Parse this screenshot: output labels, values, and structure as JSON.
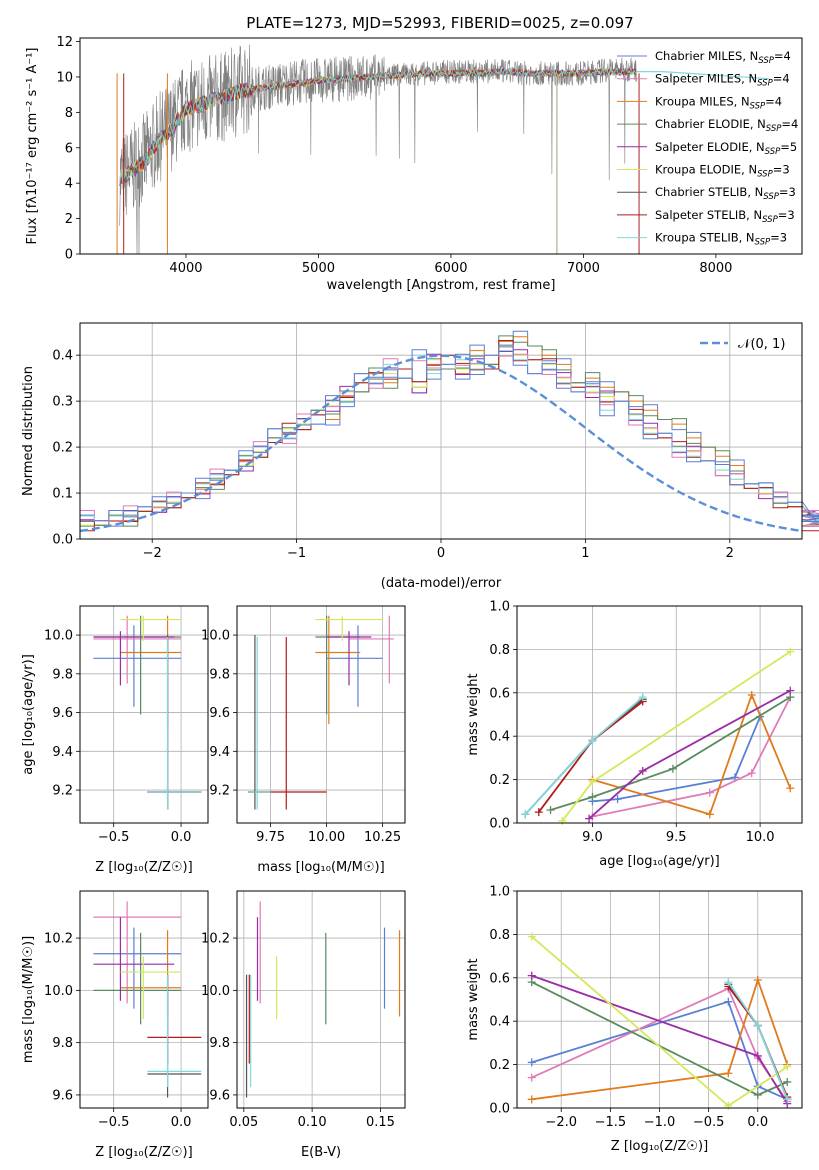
{
  "figure_title": "PLATE=1273, MJD=52993, FIBERID=0025, z=0.097",
  "models": [
    {
      "name": "Chabrier MILES",
      "nssp": "4",
      "color": "#5b7fd6"
    },
    {
      "name": "Salpeter MILES",
      "nssp": "4",
      "color": "#e07ab8"
    },
    {
      "name": "Kroupa MILES",
      "nssp": "4",
      "color": "#e07b1c"
    },
    {
      "name": "Chabrier ELODIE",
      "nssp": "4",
      "color": "#5a8a5f"
    },
    {
      "name": "Salpeter ELODIE",
      "nssp": "5",
      "color": "#9a2ca6"
    },
    {
      "name": "Kroupa ELODIE",
      "nssp": "3",
      "color": "#d4e85a"
    },
    {
      "name": "Chabrier STELIB",
      "nssp": "3",
      "color": "#555555"
    },
    {
      "name": "Salpeter STELIB",
      "nssp": "3",
      "color": "#b01c1c"
    },
    {
      "name": "Kroupa STELIB",
      "nssp": "3",
      "color": "#7fd8dc"
    }
  ],
  "chart_data": [
    {
      "id": "spectrum",
      "type": "line",
      "title": "PLATE=1273, MJD=52993, FIBERID=0025, z=0.097",
      "xlabel": "wavelength [Angstrom, rest frame]",
      "ylabel": "Flux [fλ10⁻¹⁷ erg cm⁻² s⁻¹ A⁻¹]",
      "xlim": [
        3200,
        8650
      ],
      "ylim": [
        0,
        12.2
      ],
      "xticks": [
        4000,
        5000,
        6000,
        7000,
        8000
      ],
      "yticks": [
        0,
        2,
        4,
        6,
        8,
        10,
        12
      ],
      "legend": "top-right",
      "x": [
        3500,
        3600,
        3700,
        3800,
        3900,
        4000,
        4100,
        4200,
        4300,
        4400,
        4500,
        4600,
        4800,
        5000,
        5200,
        5400,
        5600,
        5800,
        6000,
        6200,
        6400,
        6600,
        6800,
        7000,
        7200,
        7400
      ],
      "data_flux": [
        4.2,
        4.8,
        5.5,
        6.6,
        7.3,
        8.3,
        8.5,
        8.7,
        8.9,
        9.3,
        9.4,
        9.4,
        9.7,
        9.8,
        9.9,
        10.0,
        10.1,
        10.2,
        10.3,
        10.3,
        10.3,
        10.2,
        10.2,
        10.2,
        10.4,
        10.4
      ],
      "model_flux": [
        4.3,
        4.7,
        5.3,
        6.5,
        7.1,
        8.2,
        8.4,
        8.7,
        8.9,
        9.2,
        9.3,
        9.4,
        9.6,
        9.8,
        9.9,
        10.0,
        10.1,
        10.2,
        10.2,
        10.2,
        10.3,
        10.2,
        10.2,
        10.2,
        10.3,
        10.3
      ],
      "model_tail": {
        "x": [
          7400,
          7600,
          7800,
          8000,
          8200,
          8400
        ],
        "y": [
          10.3,
          10.3,
          10.2,
          10.1,
          10.0,
          9.9
        ]
      }
    },
    {
      "id": "residuals",
      "type": "bar",
      "xlabel": "(data-model)/error",
      "ylabel": "Normed distribution",
      "xlim": [
        -2.5,
        2.5
      ],
      "ylim": [
        0,
        0.47
      ],
      "xticks": [
        -2,
        -1,
        0,
        1,
        2
      ],
      "yticks": [
        0.0,
        0.1,
        0.2,
        0.3,
        0.4
      ],
      "grid": true,
      "legend": "top-right",
      "gaussian_label": "𝒩(0, 1)",
      "bin_width": 0.1,
      "bin_start": -2.5,
      "bins": [
        [
          0.04,
          0.03,
          0.04,
          0.04,
          0.06,
          0.07,
          0.08,
          0.09,
          0.1,
          0.12,
          0.15,
          0.17,
          0.19,
          0.22,
          0.23,
          0.25,
          0.28,
          0.26,
          0.31,
          0.32,
          0.36,
          0.34,
          0.35,
          0.33,
          0.38,
          0.37,
          0.36,
          0.41,
          0.38,
          0.43,
          0.44,
          0.42,
          0.4,
          0.38,
          0.34,
          0.35,
          0.33,
          0.32,
          0.3,
          0.28,
          0.26,
          0.25,
          0.22,
          0.2,
          0.18,
          0.16,
          0.12,
          0.11,
          0.09,
          0.07,
          0.06,
          0.05,
          0.04,
          0.04,
          0.04
        ],
        [
          0.03,
          0.04,
          0.05,
          0.05,
          0.06,
          0.07,
          0.08,
          0.09,
          0.11,
          0.13,
          0.14,
          0.16,
          0.19,
          0.21,
          0.24,
          0.25,
          0.27,
          0.29,
          0.32,
          0.34,
          0.35,
          0.36,
          0.37,
          0.33,
          0.39,
          0.4,
          0.37,
          0.38,
          0.37,
          0.42,
          0.4,
          0.39,
          0.38,
          0.35,
          0.33,
          0.32,
          0.31,
          0.3,
          0.27,
          0.24,
          0.22,
          0.2,
          0.19,
          0.17,
          0.15,
          0.13,
          0.11,
          0.1,
          0.08,
          0.07,
          0.06,
          0.05,
          0.05,
          0.04,
          0.03
        ],
        [
          0.05,
          0.04,
          0.05,
          0.06,
          0.07,
          0.08,
          0.09,
          0.1,
          0.12,
          0.14,
          0.15,
          0.18,
          0.2,
          0.24,
          0.22,
          0.26,
          0.25,
          0.3,
          0.3,
          0.36,
          0.34,
          0.38,
          0.35,
          0.4,
          0.36,
          0.38,
          0.39,
          0.37,
          0.4,
          0.41,
          0.39,
          0.36,
          0.37,
          0.34,
          0.32,
          0.33,
          0.28,
          0.3,
          0.26,
          0.23,
          0.23,
          0.19,
          0.18,
          0.17,
          0.15,
          0.13,
          0.12,
          0.11,
          0.09,
          0.08,
          0.07,
          0.05,
          0.05,
          0.04,
          0.05
        ]
      ]
    },
    {
      "id": "age-vs-Z",
      "type": "scatter",
      "xlabel": "Z [log₁₀(Z/Z☉)]",
      "ylabel": "age  [log₁₀(age/yr)]",
      "xlim": [
        -0.75,
        0.2
      ],
      "ylim": [
        9.03,
        10.15
      ],
      "xticks": [
        -0.5,
        0.0
      ],
      "yticks": [
        9.2,
        9.4,
        9.6,
        9.8,
        10.0
      ],
      "grid": true
    },
    {
      "id": "age-vs-mass",
      "type": "scatter",
      "xlabel": "mass [log₁₀(M/M☉)]",
      "ylabel": "",
      "xlim": [
        9.6,
        10.35
      ],
      "ylim": [
        9.03,
        10.15
      ],
      "xticks": [
        9.75,
        10.0,
        10.25
      ],
      "yticks": [
        9.2,
        9.4,
        9.6,
        9.8,
        10.0
      ],
      "grid": true
    },
    {
      "id": "massweight-vs-age",
      "type": "line",
      "xlabel": "age  [log₁₀(age/yr)]",
      "ylabel": "mass weight",
      "xlim": [
        8.55,
        10.25
      ],
      "ylim": [
        0,
        1.0
      ],
      "xticks": [
        9.0,
        9.5,
        10.0
      ],
      "yticks": [
        0.0,
        0.2,
        0.4,
        0.6,
        0.8,
        1.0
      ],
      "grid": true,
      "series": [
        {
          "model": 0,
          "x": [
            9.0,
            9.15,
            9.85,
            10.0
          ],
          "y": [
            0.1,
            0.11,
            0.21,
            0.49
          ]
        },
        {
          "model": 1,
          "x": [
            9.0,
            9.7,
            9.95,
            10.18
          ],
          "y": [
            0.03,
            0.14,
            0.23,
            0.58
          ]
        },
        {
          "model": 2,
          "x": [
            9.0,
            9.7,
            9.95,
            10.18
          ],
          "y": [
            0.2,
            0.04,
            0.59,
            0.16
          ]
        },
        {
          "model": 3,
          "x": [
            8.75,
            9.0,
            9.48,
            10.18
          ],
          "y": [
            0.06,
            0.12,
            0.25,
            0.58
          ]
        },
        {
          "model": 4,
          "x": [
            8.98,
            9.3,
            10.18
          ],
          "y": [
            0.02,
            0.24,
            0.61
          ]
        },
        {
          "model": 5,
          "x": [
            8.82,
            9.0,
            10.18
          ],
          "y": [
            0.01,
            0.19,
            0.79
          ]
        },
        {
          "model": 6,
          "x": [
            8.6,
            9.0,
            9.3
          ],
          "y": [
            0.04,
            0.38,
            0.57
          ]
        },
        {
          "model": 7,
          "x": [
            8.68,
            9.0,
            9.3
          ],
          "y": [
            0.05,
            0.38,
            0.56
          ]
        },
        {
          "model": 8,
          "x": [
            8.6,
            9.0,
            9.3
          ],
          "y": [
            0.04,
            0.38,
            0.58
          ]
        }
      ]
    },
    {
      "id": "mass-vs-Z",
      "type": "scatter",
      "xlabel": "Z [log₁₀(Z/Z☉)]",
      "ylabel": "mass [log₁₀(M/M☉)]",
      "xlim": [
        -0.75,
        0.2
      ],
      "ylim": [
        9.55,
        10.38
      ],
      "xticks": [
        -0.5,
        0.0
      ],
      "yticks": [
        9.6,
        9.8,
        10.0,
        10.2
      ],
      "grid": true
    },
    {
      "id": "mass-vs-EBV",
      "type": "scatter",
      "xlabel": "E(B-V)",
      "ylabel": "",
      "xlim": [
        0.045,
        0.168
      ],
      "ylim": [
        9.55,
        10.38
      ],
      "xticks": [
        0.05,
        0.1,
        0.15
      ],
      "yticks": [
        9.6,
        9.8,
        10.0,
        10.2
      ],
      "grid": true
    },
    {
      "id": "massweight-vs-Z",
      "type": "line",
      "xlabel": "Z [log₁₀(Z/Z☉)]",
      "ylabel": "mass weight",
      "xlim": [
        -2.45,
        0.45
      ],
      "ylim": [
        0,
        1.0
      ],
      "xticks": [
        -2.0,
        -1.5,
        -1.0,
        -0.5,
        0.0
      ],
      "yticks": [
        0.0,
        0.2,
        0.4,
        0.6,
        0.8,
        1.0
      ],
      "grid": true,
      "series": [
        {
          "model": 0,
          "x": [
            -2.3,
            -0.3,
            0.0,
            0.3
          ],
          "y": [
            0.21,
            0.49,
            0.1,
            0.04
          ]
        },
        {
          "model": 1,
          "x": [
            -2.3,
            -0.3,
            0.0,
            0.3
          ],
          "y": [
            0.14,
            0.55,
            0.23,
            0.03
          ]
        },
        {
          "model": 2,
          "x": [
            -2.3,
            -0.3,
            0.0,
            0.3
          ],
          "y": [
            0.04,
            0.16,
            0.59,
            0.2
          ]
        },
        {
          "model": 3,
          "x": [
            -2.3,
            0.0,
            0.3
          ],
          "y": [
            0.58,
            0.06,
            0.12
          ]
        },
        {
          "model": 4,
          "x": [
            -2.3,
            0.0,
            0.3
          ],
          "y": [
            0.61,
            0.24,
            0.02
          ]
        },
        {
          "model": 5,
          "x": [
            -2.3,
            -0.3,
            0.3
          ],
          "y": [
            0.79,
            0.01,
            0.19
          ]
        },
        {
          "model": 6,
          "x": [
            -0.3,
            0.0,
            0.3
          ],
          "y": [
            0.57,
            0.38,
            0.04
          ]
        },
        {
          "model": 7,
          "x": [
            -0.3,
            0.0,
            0.3
          ],
          "y": [
            0.56,
            0.38,
            0.05
          ]
        },
        {
          "model": 8,
          "x": [
            -0.3,
            0.0,
            0.3
          ],
          "y": [
            0.58,
            0.38,
            0.04
          ]
        }
      ]
    }
  ],
  "fits": {
    "z": [
      -0.35,
      -0.4,
      -0.1,
      -0.3,
      -0.45,
      -0.28,
      -0.1,
      -0.1,
      -0.1
    ],
    "z_lo": [
      -0.65,
      -0.65,
      -0.45,
      -0.65,
      -0.65,
      -0.45,
      -0.25,
      -0.25,
      -0.25
    ],
    "z_hi": [
      0.0,
      0.0,
      0.0,
      0.0,
      -0.05,
      0.0,
      0.15,
      0.15,
      0.15
    ],
    "age": [
      9.88,
      9.98,
      9.91,
      9.99,
      9.99,
      10.08,
      9.19,
      9.19,
      9.19
    ],
    "age_lo": [
      9.63,
      9.75,
      9.54,
      9.59,
      9.74,
      9.97,
      9.1,
      9.1,
      9.1
    ],
    "age_hi": [
      10.05,
      10.1,
      10.1,
      10.1,
      10.02,
      10.1,
      10.0,
      9.99,
      9.99
    ],
    "mass": [
      10.14,
      10.28,
      10.01,
      10.0,
      10.1,
      10.07,
      9.68,
      9.82,
      9.69
    ],
    "mass_lo": [
      9.93,
      9.95,
      9.9,
      9.87,
      9.96,
      9.89,
      9.59,
      9.72,
      9.63
    ],
    "mass_hi": [
      10.24,
      10.34,
      10.23,
      10.22,
      10.28,
      10.13,
      10.06,
      10.06,
      10.06
    ],
    "mass_x_lo": [
      10.0,
      10.1,
      9.95,
      9.95,
      10.0,
      9.95,
      9.65,
      9.65,
      9.65
    ],
    "mass_x_hi": [
      10.25,
      10.3,
      10.15,
      10.15,
      10.2,
      10.25,
      9.75,
      10.0,
      9.75
    ],
    "ebv": [
      0.153,
      0.062,
      0.164,
      0.11,
      0.06,
      0.074,
      0.052,
      0.054,
      0.055
    ]
  }
}
